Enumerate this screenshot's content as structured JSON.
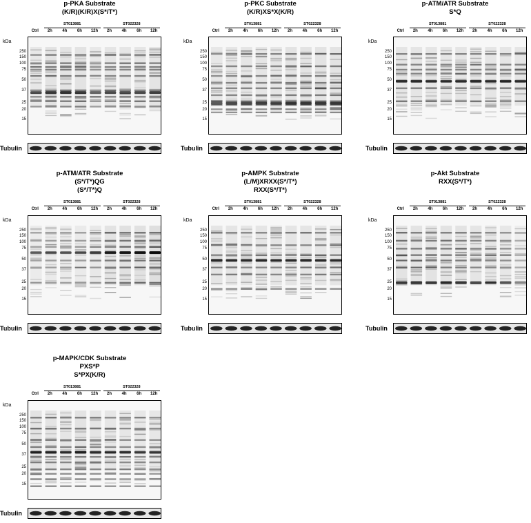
{
  "labels": {
    "kda": "kDa",
    "loading_control": "Tubulin",
    "lanes": [
      "Ctrl",
      "2h",
      "4h",
      "6h",
      "12h",
      "2h",
      "4h",
      "6h",
      "12h"
    ],
    "groups": [
      "ST013881",
      "ST022328"
    ],
    "mw_markers": [
      "250",
      "150",
      "100",
      "75",
      "50",
      "37",
      "25",
      "20",
      "15"
    ]
  },
  "panels": [
    {
      "title": [
        "p-PKA Substrate",
        "(K/R)(K/R)X(S*/T*)"
      ],
      "bands": [
        55,
        100,
        130,
        145,
        170,
        240,
        28,
        42,
        35
      ],
      "dark_band": 50,
      "lane_intensity": [
        0.8,
        1,
        1,
        1,
        0.75,
        0.9,
        0.9,
        0.9,
        0.95
      ]
    },
    {
      "title": [
        "p-PKC Substrate",
        "(K/R)XS*X(K/R)"
      ],
      "bands": [
        250,
        150,
        100,
        75,
        60,
        45,
        35,
        30,
        25,
        22
      ],
      "dark_band": 32,
      "lane_intensity": [
        0.8,
        0.9,
        0.9,
        0.9,
        0.9,
        1,
        1,
        1,
        1
      ]
    },
    {
      "title": [
        "p-ATM/ATR Substrate",
        "S*Q"
      ],
      "bands": [
        250,
        160,
        130,
        110,
        80,
        60,
        35
      ],
      "dark_band": 80,
      "lane_intensity": [
        0.9,
        0.9,
        0.9,
        0.9,
        0.9,
        0.9,
        0.9,
        0.9,
        0.9
      ]
    },
    {
      "title": [
        "p-ATM/ATR Substrate",
        "(S*/T*)QG",
        "(S*/T*)Q"
      ],
      "bands": [
        250,
        180,
        140,
        110,
        80,
        60,
        32
      ],
      "dark_band": 110,
      "lane_intensity": [
        0.6,
        0.65,
        0.65,
        0.65,
        0.75,
        1,
        1.1,
        1.1,
        1.2
      ]
    },
    {
      "title": [
        "p-AMPK Substrate",
        "(L/M)XRXX(S*/T*)",
        "RXX(S*/T*)"
      ],
      "bands": [
        250,
        150,
        100,
        80,
        60,
        45,
        25
      ],
      "dark_band": 80,
      "lane_intensity": [
        0.9,
        0.9,
        0.9,
        0.9,
        0.9,
        0.9,
        0.9,
        0.9,
        0.9
      ]
    },
    {
      "title": [
        "p-Akt Substrate",
        "RXX(S*/T*)"
      ],
      "bands": [
        250,
        180,
        130,
        100,
        80,
        60
      ],
      "dark_band": 32,
      "lane_intensity": [
        1,
        1,
        1,
        1,
        1,
        0.9,
        0.9,
        0.8,
        0.5
      ]
    },
    {
      "title": [
        "p-MAPK/CDK Substrate",
        "PXS*P",
        "S*PX(K/R)"
      ],
      "bands": [
        250,
        160,
        100,
        75,
        60,
        50,
        40,
        30,
        25,
        20,
        15
      ],
      "dark_band": 60,
      "lane_intensity": [
        1,
        0.95,
        0.9,
        1,
        0.9,
        0.85,
        0.85,
        0.8,
        0.8
      ]
    }
  ]
}
